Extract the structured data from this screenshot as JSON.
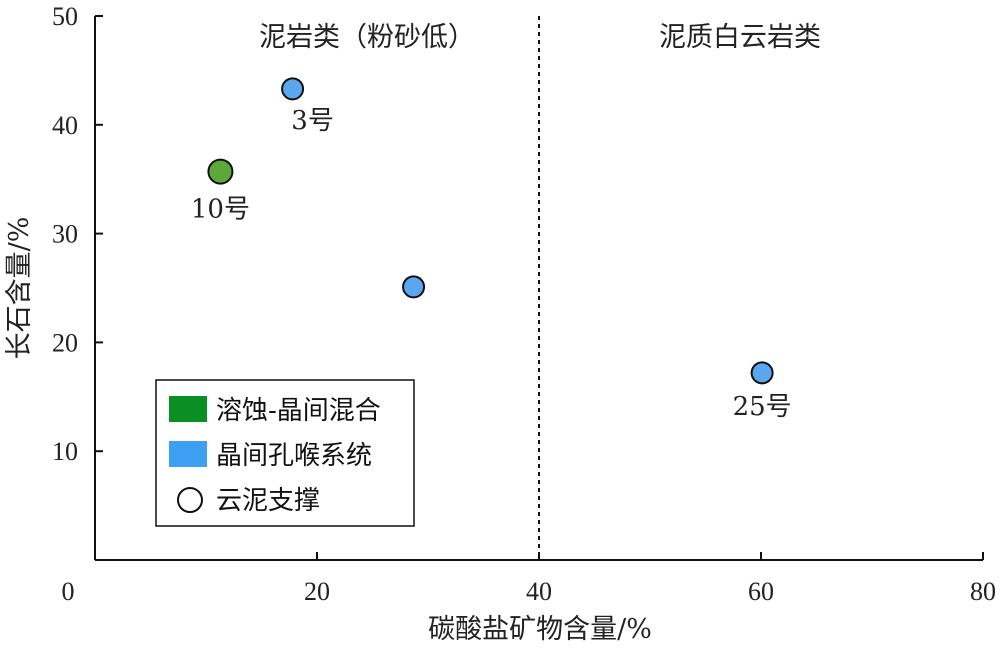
{
  "chart_data": {
    "type": "scatter",
    "xlabel": "碳酸盐矿物含量/%",
    "ylabel": "长石含量/%",
    "xlim": [
      0,
      80
    ],
    "ylim": [
      0,
      50
    ],
    "x_ticks": [
      "0",
      "20",
      "40",
      "60",
      "80"
    ],
    "y_ticks": [
      "10",
      "20",
      "30",
      "40",
      "50"
    ],
    "grid": false,
    "divider_x": 40,
    "regions": [
      {
        "label": "泥岩类（粉砂低）"
      },
      {
        "label": "泥质白云岩类"
      }
    ],
    "points": [
      {
        "x": 17.8,
        "y": 43.3,
        "label": "3号",
        "color": "#5aa6ef"
      },
      {
        "x": 11.3,
        "y": 35.7,
        "label": "10号",
        "color": "#5aa93a"
      },
      {
        "x": 28.7,
        "y": 25.1,
        "label": "",
        "color": "#5aa6ef"
      },
      {
        "x": 60.1,
        "y": 17.2,
        "label": "25号",
        "color": "#5aa6ef"
      }
    ],
    "legend": {
      "position": "bottom-left",
      "items": [
        {
          "label": "溶蚀-晶间混合",
          "swatch": "square",
          "color": "#0a8f24"
        },
        {
          "label": "晶间孔喉系统",
          "swatch": "square",
          "color": "#3ea0f2"
        },
        {
          "label": "云泥支撑",
          "swatch": "circle",
          "color": "#ffffff"
        }
      ]
    }
  }
}
